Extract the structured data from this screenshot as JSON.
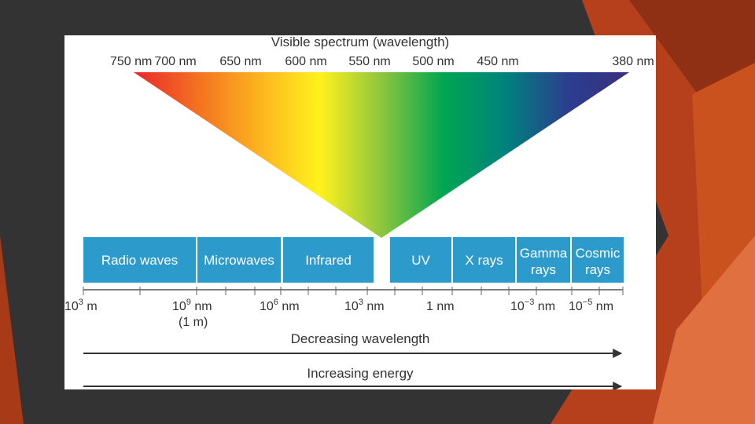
{
  "colors": {
    "slide_background": "#333333",
    "accent_orange": "#c4461f",
    "accent_light": "#e8703f",
    "band_blue": "#2d9acc"
  },
  "visible_spectrum": {
    "title": "Visible spectrum (wavelength)",
    "ticks": [
      "750 nm",
      "700 nm",
      "650 nm",
      "600 nm",
      "550 nm",
      "500 nm",
      "450 nm",
      "380 nm"
    ],
    "gradient_colors": [
      "#e8262d",
      "#f36f21",
      "#fbb21f",
      "#fff21c",
      "#8dc63f",
      "#00a651",
      "#00827d",
      "#2b3e8f",
      "#3a2f80"
    ]
  },
  "bands": [
    {
      "lines": [
        "Radio waves"
      ]
    },
    {
      "lines": [
        "Microwaves"
      ]
    },
    {
      "lines": [
        "Infrared"
      ]
    },
    {
      "lines": [
        "UV"
      ]
    },
    {
      "lines": [
        "X rays"
      ]
    },
    {
      "lines": [
        "Gamma",
        "rays"
      ]
    },
    {
      "lines": [
        "Cosmic",
        "rays"
      ]
    }
  ],
  "scale": [
    {
      "base": "10",
      "exp": "3",
      "unit": " m"
    },
    {
      "base": "10",
      "exp": "9",
      "unit": " nm",
      "sub": "(1 m)"
    },
    {
      "base": "10",
      "exp": "6",
      "unit": " nm"
    },
    {
      "base": "10",
      "exp": "3",
      "unit": " nm"
    },
    {
      "base": "",
      "exp": "",
      "unit": "1 nm"
    },
    {
      "base": "10",
      "exp": "−3",
      "unit": " nm"
    },
    {
      "base": "10",
      "exp": "−5",
      "unit": " nm"
    }
  ],
  "arrows": [
    {
      "label": "Decreasing wavelength"
    },
    {
      "label": "Increasing energy"
    }
  ]
}
